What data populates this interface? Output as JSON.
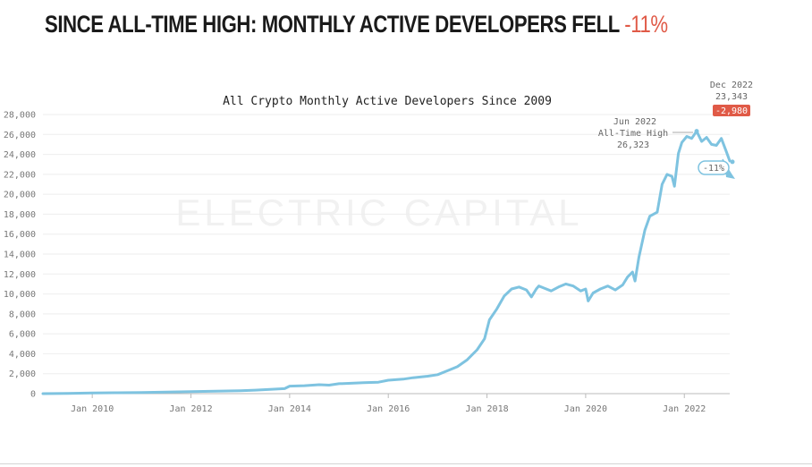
{
  "headline": {
    "main": "SINCE ALL-TIME HIGH: MONTHLY ACTIVE DEVELOPERS FELL ",
    "accent": "-11%"
  },
  "colors": {
    "line": "#7ec3e0",
    "accent": "#e05a47",
    "grid": "#eeeeee"
  },
  "chart_data": {
    "type": "line",
    "title": "All Crypto Monthly Active Developers Since 2009",
    "xlabel": "",
    "ylabel": "",
    "watermark": "ELECTRIC CAPITAL",
    "xlim": [
      2009.0,
      2022.92
    ],
    "ylim": [
      0,
      28000
    ],
    "y_ticks": [
      0,
      2000,
      4000,
      6000,
      8000,
      10000,
      12000,
      14000,
      16000,
      18000,
      20000,
      22000,
      24000,
      26000,
      28000
    ],
    "y_tick_labels": [
      "0",
      "2,000",
      "4,000",
      "6,000",
      "8,000",
      "10,000",
      "12,000",
      "14,000",
      "16,000",
      "18,000",
      "20,000",
      "22,000",
      "24,000",
      "26,000",
      "28,000"
    ],
    "x_ticks": [
      2010,
      2012,
      2014,
      2016,
      2018,
      2020,
      2022
    ],
    "x_tick_labels": [
      "Jan 2010",
      "Jan 2012",
      "Jan 2014",
      "Jan 2016",
      "Jan 2018",
      "Jan 2020",
      "Jan 2022"
    ],
    "grid": "horizontal",
    "series": [
      {
        "x": [
          2009.0,
          2009.5,
          2010.0,
          2010.5,
          2011.0,
          2011.5,
          2012.0,
          2012.5,
          2013.0,
          2013.3,
          2013.6,
          2013.9,
          2014.0,
          2014.3,
          2014.6,
          2014.8,
          2015.0,
          2015.3,
          2015.5,
          2015.8,
          2016.0,
          2016.3,
          2016.5,
          2016.8,
          2017.0,
          2017.2,
          2017.4,
          2017.6,
          2017.8,
          2017.95,
          2018.05,
          2018.2,
          2018.35,
          2018.5,
          2018.65,
          2018.8,
          2018.9,
          2019.0,
          2019.05,
          2019.15,
          2019.3,
          2019.45,
          2019.6,
          2019.75,
          2019.9,
          2020.0,
          2020.05,
          2020.15,
          2020.3,
          2020.45,
          2020.6,
          2020.75,
          2020.85,
          2020.95,
          2021.0,
          2021.08,
          2021.2,
          2021.3,
          2021.45,
          2021.55,
          2021.65,
          2021.75,
          2021.8,
          2021.88,
          2021.95,
          2022.05,
          2022.15,
          2022.25,
          2022.35,
          2022.45,
          2022.55,
          2022.65,
          2022.75,
          2022.85,
          2022.92
        ],
        "y": [
          0,
          30,
          60,
          90,
          120,
          150,
          200,
          250,
          300,
          350,
          420,
          500,
          750,
          800,
          900,
          850,
          1000,
          1050,
          1100,
          1150,
          1350,
          1450,
          1600,
          1750,
          1900,
          2300,
          2700,
          3400,
          4400,
          5500,
          7400,
          8500,
          9800,
          10500,
          10700,
          10400,
          9700,
          10500,
          10800,
          10600,
          10300,
          10700,
          11000,
          10800,
          10300,
          10500,
          9300,
          10100,
          10500,
          10800,
          10400,
          10900,
          11700,
          12200,
          11300,
          13700,
          16400,
          17800,
          18200,
          21000,
          22000,
          21800,
          20800,
          24100,
          25200,
          25800,
          25600,
          26323,
          25300,
          25700,
          25000,
          24900,
          25600,
          24300,
          23343
        ]
      }
    ],
    "annotations": {
      "ath": {
        "x": 2022.25,
        "y": 26323,
        "label_date": "Jun 2022",
        "label_title": "All-Time High",
        "label_value": "26,323"
      },
      "last": {
        "x": 2022.92,
        "y": 23343,
        "label_date": "Dec 2022",
        "label_value": "23,343",
        "label_change": "-2,980"
      },
      "pct_badge": "-11%"
    }
  }
}
